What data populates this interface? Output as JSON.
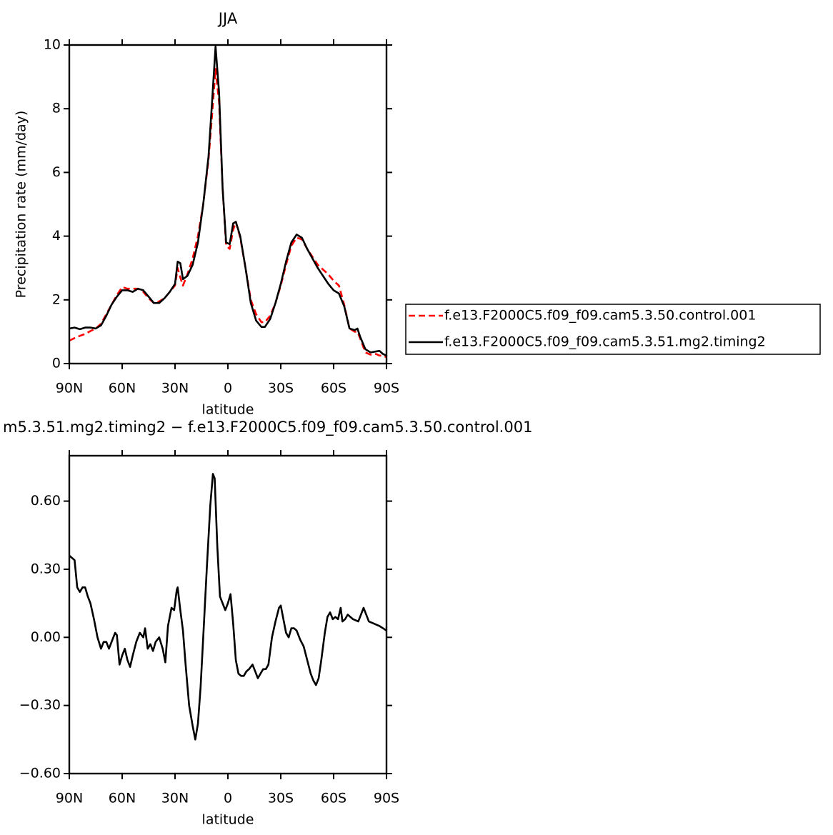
{
  "chart_data": [
    {
      "type": "line",
      "title": "JJA",
      "ylabel": "Precipitation rate (mm/day)",
      "xlabel": "latitude",
      "x": [
        90,
        87,
        84,
        81,
        78,
        75,
        72,
        69,
        66,
        63,
        60,
        57,
        54,
        51,
        48,
        45,
        42,
        39,
        36,
        33,
        30,
        28.5,
        27,
        25.5,
        23,
        20,
        17,
        14,
        11,
        9,
        7,
        5,
        3,
        1,
        -1,
        -3,
        -4.5,
        -7,
        -10,
        -13,
        -16,
        -19,
        -21,
        -24,
        -27,
        -30,
        -33,
        -36,
        -39,
        -42,
        -45,
        -48,
        -51,
        -54,
        -57,
        -60,
        -63,
        -66,
        -69,
        -72,
        -73.5,
        -75,
        -78,
        -81,
        -84,
        -86,
        -88,
        -90
      ],
      "xlim": [
        90,
        -90
      ],
      "xticks": [
        {
          "value": 90,
          "label": "90N"
        },
        {
          "value": 60,
          "label": "60N"
        },
        {
          "value": 30,
          "label": "30N"
        },
        0,
        {
          "value": -30,
          "label": "30S"
        },
        {
          "value": -60,
          "label": "60S"
        },
        {
          "value": -90,
          "label": "90S"
        }
      ],
      "ylim": [
        0,
        10
      ],
      "yticks": [
        0,
        2,
        4,
        6,
        8,
        10
      ],
      "grid": false,
      "legend": "right",
      "series": [
        {
          "name": "f.e13.F2000C5.f09_f09.cam5.3.50.control.001",
          "color": "#ff0000",
          "dashed": true,
          "values": [
            0.72,
            0.8,
            0.87,
            0.93,
            1.02,
            1.1,
            1.25,
            1.55,
            1.85,
            2.15,
            2.4,
            2.35,
            2.35,
            2.35,
            2.25,
            2.05,
            1.9,
            1.95,
            2.05,
            2.25,
            2.45,
            3.0,
            2.7,
            2.45,
            2.8,
            3.3,
            4.0,
            5.0,
            6.4,
            7.8,
            9.25,
            8.2,
            5.5,
            3.7,
            3.6,
            4.2,
            4.45,
            3.95,
            3.0,
            2.0,
            1.55,
            1.3,
            1.3,
            1.5,
            1.9,
            2.45,
            3.1,
            3.7,
            3.95,
            3.9,
            3.6,
            3.35,
            3.1,
            2.95,
            2.8,
            2.6,
            2.45,
            1.85,
            1.1,
            1.0,
            1.0,
            0.8,
            0.35,
            0.28,
            0.3,
            0.25,
            0.25,
            0.2
          ]
        },
        {
          "name": "f.e13.F2000C5.f09_f09.cam5.3.51.mg2.timing2",
          "color": "#000000",
          "dashed": false,
          "values": [
            1.1,
            1.13,
            1.08,
            1.13,
            1.13,
            1.1,
            1.2,
            1.5,
            1.85,
            2.1,
            2.3,
            2.3,
            2.25,
            2.35,
            2.3,
            2.1,
            1.9,
            1.9,
            2.05,
            2.25,
            2.5,
            3.2,
            3.15,
            2.65,
            2.75,
            3.1,
            3.8,
            5.0,
            6.5,
            8.2,
            9.95,
            8.5,
            5.5,
            3.8,
            3.75,
            4.4,
            4.45,
            4.0,
            3.0,
            1.9,
            1.35,
            1.15,
            1.15,
            1.4,
            1.9,
            2.5,
            3.2,
            3.8,
            4.05,
            3.95,
            3.6,
            3.3,
            3.0,
            2.75,
            2.5,
            2.3,
            2.2,
            1.8,
            1.1,
            1.05,
            1.1,
            0.85,
            0.45,
            0.35,
            0.38,
            0.4,
            0.3,
            0.25
          ]
        }
      ]
    },
    {
      "type": "line",
      "title": "m5.3.51.mg2.timing2 − f.e13.F2000C5.f09_f09.cam5.3.50.control.001",
      "xlabel": "latitude",
      "x": [
        90,
        88.5,
        87,
        85.5,
        84,
        82.5,
        81,
        79.5,
        78,
        76,
        74,
        72,
        70.5,
        69,
        67.5,
        66,
        64,
        63,
        61.5,
        60,
        58.5,
        57,
        55.5,
        54,
        52,
        50,
        48,
        47,
        45.5,
        44,
        42.5,
        41,
        39,
        37,
        35.5,
        34,
        32,
        30.5,
        29,
        28.5,
        27,
        25.5,
        24,
        22,
        20,
        18.5,
        17,
        15.5,
        14,
        12,
        10,
        8.5,
        7.5,
        6,
        4.5,
        3,
        1.5,
        0,
        -1.5,
        -3,
        -4.5,
        -6,
        -7.5,
        -9,
        -10.5,
        -12,
        -14,
        -15.5,
        -17,
        -18.5,
        -20,
        -21.5,
        -23,
        -25,
        -27,
        -29,
        -30,
        -31.5,
        -33,
        -34.5,
        -36,
        -37.5,
        -39,
        -41,
        -43,
        -45,
        -47,
        -48.5,
        -50,
        -51.5,
        -53,
        -55,
        -56.5,
        -58,
        -59.5,
        -61,
        -62.5,
        -64,
        -65,
        -66.5,
        -68,
        -71,
        -74,
        -77,
        -80,
        -83,
        -86,
        -88,
        -90
      ],
      "xlim": [
        90,
        -90
      ],
      "xticks": [
        {
          "value": 90,
          "label": "90N"
        },
        {
          "value": 60,
          "label": "60N"
        },
        {
          "value": 30,
          "label": "30N"
        },
        0,
        {
          "value": -30,
          "label": "30S"
        },
        {
          "value": -60,
          "label": "60S"
        },
        {
          "value": -90,
          "label": "90S"
        }
      ],
      "ylim": [
        -0.6,
        0.8
      ],
      "yticks": [
        {
          "value": -0.6,
          "label": "−0.60"
        },
        {
          "value": -0.3,
          "label": "−0.30"
        },
        {
          "value": 0,
          "label": "0.00"
        },
        {
          "value": 0.3,
          "label": "0.30"
        },
        {
          "value": 0.6,
          "label": "0.60"
        }
      ],
      "grid": false,
      "series": [
        {
          "color": "#000000",
          "dashed": false,
          "values": [
            0.36,
            0.35,
            0.34,
            0.22,
            0.2,
            0.22,
            0.22,
            0.18,
            0.15,
            0.08,
            0,
            -0.05,
            -0.02,
            -0.02,
            -0.05,
            -0.02,
            0.02,
            0.01,
            -0.12,
            -0.08,
            -0.05,
            -0.1,
            -0.13,
            -0.08,
            -0.02,
            0.02,
            0,
            0.04,
            -0.05,
            -0.03,
            -0.06,
            -0.02,
            0,
            -0.05,
            -0.11,
            0.05,
            0.13,
            0.12,
            0.21,
            0.22,
            0.12,
            0.03,
            -0.12,
            -0.3,
            -0.39,
            -0.45,
            -0.38,
            -0.22,
            0,
            0.3,
            0.58,
            0.72,
            0.7,
            0.4,
            0.18,
            0.15,
            0.12,
            0.15,
            0.19,
            0.06,
            -0.1,
            -0.16,
            -0.17,
            -0.17,
            -0.15,
            -0.14,
            -0.12,
            -0.15,
            -0.18,
            -0.16,
            -0.14,
            -0.14,
            -0.12,
            0,
            0.07,
            0.13,
            0.14,
            0.08,
            0.02,
            0,
            0.04,
            0.04,
            0.03,
            -0.01,
            -0.04,
            -0.1,
            -0.16,
            -0.19,
            -0.21,
            -0.18,
            -0.1,
            0.02,
            0.09,
            0.11,
            0.08,
            0.09,
            0.08,
            0.13,
            0.07,
            0.08,
            0.1,
            0.08,
            0.07,
            0.13,
            0.07,
            0.06,
            0.05,
            0.04,
            0.03
          ]
        }
      ]
    }
  ]
}
